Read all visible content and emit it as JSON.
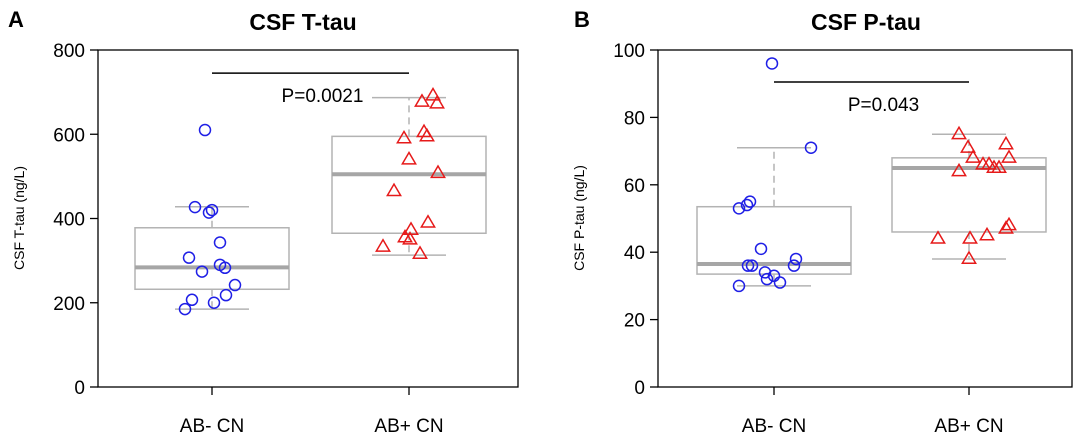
{
  "chart_data": [
    {
      "type": "box",
      "panel": "A",
      "title": "CSF T-tau",
      "xlabel": "",
      "ylabel": "CSF T-tau (ng/L)",
      "ylim": [
        0,
        800
      ],
      "yticks": [
        0,
        200,
        400,
        600,
        800
      ],
      "categories": [
        "AB- CN",
        "AB+ CN"
      ],
      "significance": {
        "label": "P=0.0021",
        "y": 745
      },
      "groups": [
        {
          "category": "AB- CN",
          "marker": "circle",
          "color": "#1f1fe6",
          "box": {
            "whisker_low": 185,
            "q1": 232,
            "median": 284,
            "q3": 378,
            "whisker_high": 428
          },
          "points": [
            {
              "x": -0.07,
              "y": 610
            },
            {
              "x": -0.17,
              "y": 427
            },
            {
              "x": -0.03,
              "y": 414
            },
            {
              "x": 0.0,
              "y": 420
            },
            {
              "x": 0.08,
              "y": 343
            },
            {
              "x": -0.23,
              "y": 307
            },
            {
              "x": -0.1,
              "y": 274
            },
            {
              "x": 0.08,
              "y": 290
            },
            {
              "x": 0.13,
              "y": 283
            },
            {
              "x": 0.23,
              "y": 242
            },
            {
              "x": 0.14,
              "y": 218
            },
            {
              "x": -0.2,
              "y": 207
            },
            {
              "x": 0.02,
              "y": 200
            },
            {
              "x": -0.27,
              "y": 185
            }
          ]
        },
        {
          "category": "AB+ CN",
          "marker": "triangle",
          "color": "#e61a1a",
          "box": {
            "whisker_low": 313,
            "q1": 365,
            "median": 505,
            "q3": 595,
            "whisker_high": 687
          },
          "points": [
            {
              "x": 0.24,
              "y": 692
            },
            {
              "x": 0.13,
              "y": 677
            },
            {
              "x": 0.28,
              "y": 673
            },
            {
              "x": 0.15,
              "y": 605
            },
            {
              "x": 0.18,
              "y": 595
            },
            {
              "x": -0.05,
              "y": 590
            },
            {
              "x": 0.0,
              "y": 540
            },
            {
              "x": 0.29,
              "y": 508
            },
            {
              "x": -0.15,
              "y": 465
            },
            {
              "x": 0.19,
              "y": 390
            },
            {
              "x": 0.02,
              "y": 373
            },
            {
              "x": -0.04,
              "y": 355
            },
            {
              "x": 0.01,
              "y": 350
            },
            {
              "x": -0.26,
              "y": 333
            },
            {
              "x": 0.11,
              "y": 316
            }
          ]
        }
      ]
    },
    {
      "type": "box",
      "panel": "B",
      "title": "CSF P-tau",
      "xlabel": "",
      "ylabel": "CSF P-tau (ng/L)",
      "ylim": [
        0,
        100
      ],
      "yticks": [
        0,
        20,
        40,
        60,
        80,
        100
      ],
      "categories": [
        "AB- CN",
        "AB+ CN"
      ],
      "significance": {
        "label": "P=0.043",
        "y": 90.5
      },
      "groups": [
        {
          "category": "AB- CN",
          "marker": "circle",
          "color": "#1f1fe6",
          "box": {
            "whisker_low": 30,
            "q1": 33.5,
            "median": 36.5,
            "q3": 53.5,
            "whisker_high": 71
          },
          "points": [
            {
              "x": -0.02,
              "y": 96
            },
            {
              "x": 0.37,
              "y": 71
            },
            {
              "x": -0.35,
              "y": 53
            },
            {
              "x": -0.24,
              "y": 55
            },
            {
              "x": -0.27,
              "y": 54
            },
            {
              "x": -0.13,
              "y": 41
            },
            {
              "x": 0.22,
              "y": 38
            },
            {
              "x": -0.26,
              "y": 36
            },
            {
              "x": -0.22,
              "y": 36
            },
            {
              "x": 0.2,
              "y": 36
            },
            {
              "x": -0.09,
              "y": 34
            },
            {
              "x": 0.0,
              "y": 33
            },
            {
              "x": -0.07,
              "y": 32
            },
            {
              "x": 0.06,
              "y": 31
            },
            {
              "x": -0.35,
              "y": 30
            }
          ]
        },
        {
          "category": "AB+ CN",
          "marker": "triangle",
          "color": "#e61a1a",
          "box": {
            "whisker_low": 38,
            "q1": 46,
            "median": 65,
            "q3": 68,
            "whisker_high": 75
          },
          "points": [
            {
              "x": -0.1,
              "y": 75
            },
            {
              "x": 0.37,
              "y": 72
            },
            {
              "x": -0.01,
              "y": 71
            },
            {
              "x": 0.04,
              "y": 68
            },
            {
              "x": 0.4,
              "y": 68
            },
            {
              "x": 0.2,
              "y": 66
            },
            {
              "x": 0.14,
              "y": 66
            },
            {
              "x": 0.25,
              "y": 65
            },
            {
              "x": 0.3,
              "y": 65
            },
            {
              "x": -0.1,
              "y": 64
            },
            {
              "x": 0.4,
              "y": 48
            },
            {
              "x": 0.37,
              "y": 47
            },
            {
              "x": 0.18,
              "y": 45
            },
            {
              "x": 0.01,
              "y": 44
            },
            {
              "x": -0.31,
              "y": 44
            },
            {
              "x": 0.0,
              "y": 38
            }
          ]
        }
      ]
    }
  ]
}
